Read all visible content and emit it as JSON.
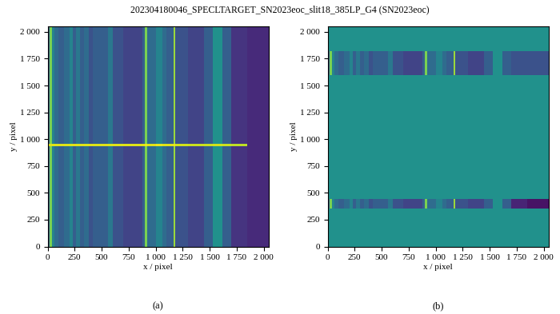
{
  "suptitle": "202304180046_SPECLTARGET_SN2023eoc_slit18_385LP_G4 (SN2023eoc)",
  "chart_data": [
    {
      "type": "heatmap",
      "caption": "(a)",
      "x_label": "x / pixel",
      "y_label": "y / pixel",
      "color": "viridis",
      "clim": [
        0,
        1
      ],
      "xlim": [
        0,
        2048
      ],
      "ylim": [
        0,
        2048
      ],
      "xticks": [
        0,
        250,
        500,
        750,
        {
          "value": 1000,
          "label": "1 000"
        },
        {
          "value": 1250,
          "label": "1 250"
        },
        {
          "value": 1500,
          "label": "1 500"
        },
        {
          "value": 1750,
          "label": "1 750"
        },
        {
          "value": 2000,
          "label": "2 000"
        }
      ],
      "yticks": [
        0,
        250,
        500,
        750,
        {
          "value": 1000,
          "label": "1 000"
        },
        {
          "value": 1250,
          "label": "1 250"
        },
        {
          "value": 1500,
          "label": "1 500"
        },
        {
          "value": 1750,
          "label": "1 750"
        },
        {
          "value": 2000,
          "label": "2 000"
        }
      ],
      "x_edges": [
        0,
        20,
        40,
        60,
        100,
        150,
        200,
        230,
        260,
        300,
        340,
        380,
        420,
        500,
        560,
        600,
        700,
        880,
        900,
        920,
        1000,
        1060,
        1100,
        1150,
        1170,
        1180,
        1300,
        1450,
        1530,
        1620,
        1700,
        1850,
        2048
      ],
      "y_edges": [
        0,
        935,
        960,
        2048
      ],
      "cells": [
        [
          0.3,
          0.8,
          0.45,
          0.35,
          0.3,
          0.35,
          0.45,
          0.3,
          0.4,
          0.3,
          0.35,
          0.25,
          0.3,
          0.3,
          0.4,
          0.25,
          0.2,
          0.3,
          0.8,
          0.35,
          0.45,
          0.35,
          0.3,
          0.3,
          0.85,
          0.25,
          0.2,
          0.3,
          0.5,
          0.3,
          0.15,
          0.12
        ],
        [
          0.95,
          0.95,
          0.95,
          0.95,
          0.95,
          0.95,
          0.95,
          0.95,
          0.95,
          0.95,
          0.95,
          0.95,
          0.95,
          0.95,
          0.95,
          0.95,
          0.95,
          0.95,
          0.98,
          0.95,
          0.97,
          0.95,
          0.95,
          0.95,
          0.98,
          0.93,
          0.92,
          0.92,
          0.93,
          0.92,
          0.9,
          0.12
        ],
        [
          0.3,
          0.8,
          0.45,
          0.35,
          0.3,
          0.35,
          0.45,
          0.3,
          0.4,
          0.3,
          0.35,
          0.25,
          0.3,
          0.3,
          0.4,
          0.25,
          0.2,
          0.3,
          0.8,
          0.35,
          0.45,
          0.35,
          0.3,
          0.3,
          0.85,
          0.25,
          0.2,
          0.3,
          0.5,
          0.3,
          0.15,
          0.12
        ]
      ]
    },
    {
      "type": "heatmap",
      "caption": "(b)",
      "x_label": "x / pixel",
      "y_label": "y / pixel",
      "color": "viridis",
      "clim": [
        0,
        1
      ],
      "xlim": [
        0,
        2048
      ],
      "ylim": [
        0,
        2048
      ],
      "xticks": [
        0,
        250,
        500,
        750,
        {
          "value": 1000,
          "label": "1 000"
        },
        {
          "value": 1250,
          "label": "1 250"
        },
        {
          "value": 1500,
          "label": "1 500"
        },
        {
          "value": 1750,
          "label": "1 750"
        },
        {
          "value": 2000,
          "label": "2 000"
        }
      ],
      "yticks": [
        0,
        250,
        500,
        750,
        {
          "value": 1000,
          "label": "1 000"
        },
        {
          "value": 1250,
          "label": "1 250"
        },
        {
          "value": 1500,
          "label": "1 500"
        },
        {
          "value": 1750,
          "label": "1 750"
        },
        {
          "value": 2000,
          "label": "2 000"
        }
      ],
      "x_edges": [
        0,
        20,
        40,
        60,
        100,
        150,
        200,
        230,
        260,
        300,
        340,
        380,
        420,
        500,
        560,
        600,
        700,
        880,
        900,
        920,
        1000,
        1060,
        1100,
        1150,
        1170,
        1180,
        1300,
        1450,
        1530,
        1620,
        1700,
        1850,
        2048
      ],
      "y_edges": [
        0,
        350,
        440,
        1600,
        1820,
        2048
      ],
      "cells": [
        [
          0.5,
          0.5,
          0.5,
          0.5,
          0.5,
          0.5,
          0.5,
          0.5,
          0.5,
          0.5,
          0.5,
          0.5,
          0.5,
          0.5,
          0.5,
          0.5,
          0.5,
          0.5,
          0.5,
          0.5,
          0.5,
          0.5,
          0.5,
          0.5,
          0.5,
          0.5,
          0.5,
          0.5,
          0.5,
          0.5,
          0.5,
          0.5
        ],
        [
          0.3,
          0.8,
          0.45,
          0.35,
          0.3,
          0.35,
          0.45,
          0.3,
          0.4,
          0.3,
          0.35,
          0.25,
          0.3,
          0.3,
          0.4,
          0.25,
          0.2,
          0.3,
          0.8,
          0.35,
          0.45,
          0.35,
          0.3,
          0.3,
          0.85,
          0.25,
          0.2,
          0.3,
          0.5,
          0.3,
          0.1,
          0.05
        ],
        [
          0.5,
          0.5,
          0.5,
          0.5,
          0.5,
          0.5,
          0.5,
          0.5,
          0.5,
          0.5,
          0.5,
          0.5,
          0.5,
          0.5,
          0.5,
          0.5,
          0.5,
          0.5,
          0.5,
          0.5,
          0.5,
          0.5,
          0.5,
          0.5,
          0.5,
          0.5,
          0.5,
          0.5,
          0.5,
          0.5,
          0.5,
          0.5
        ],
        [
          0.3,
          0.8,
          0.45,
          0.35,
          0.3,
          0.35,
          0.45,
          0.3,
          0.4,
          0.3,
          0.35,
          0.25,
          0.3,
          0.3,
          0.4,
          0.25,
          0.2,
          0.3,
          0.8,
          0.35,
          0.45,
          0.35,
          0.3,
          0.3,
          0.85,
          0.25,
          0.2,
          0.3,
          0.5,
          0.3,
          0.25,
          0.25
        ],
        [
          0.5,
          0.5,
          0.5,
          0.5,
          0.5,
          0.5,
          0.5,
          0.5,
          0.5,
          0.5,
          0.5,
          0.5,
          0.5,
          0.5,
          0.5,
          0.5,
          0.5,
          0.5,
          0.5,
          0.5,
          0.5,
          0.5,
          0.5,
          0.5,
          0.5,
          0.5,
          0.5,
          0.5,
          0.5,
          0.5,
          0.5,
          0.5
        ]
      ]
    }
  ]
}
